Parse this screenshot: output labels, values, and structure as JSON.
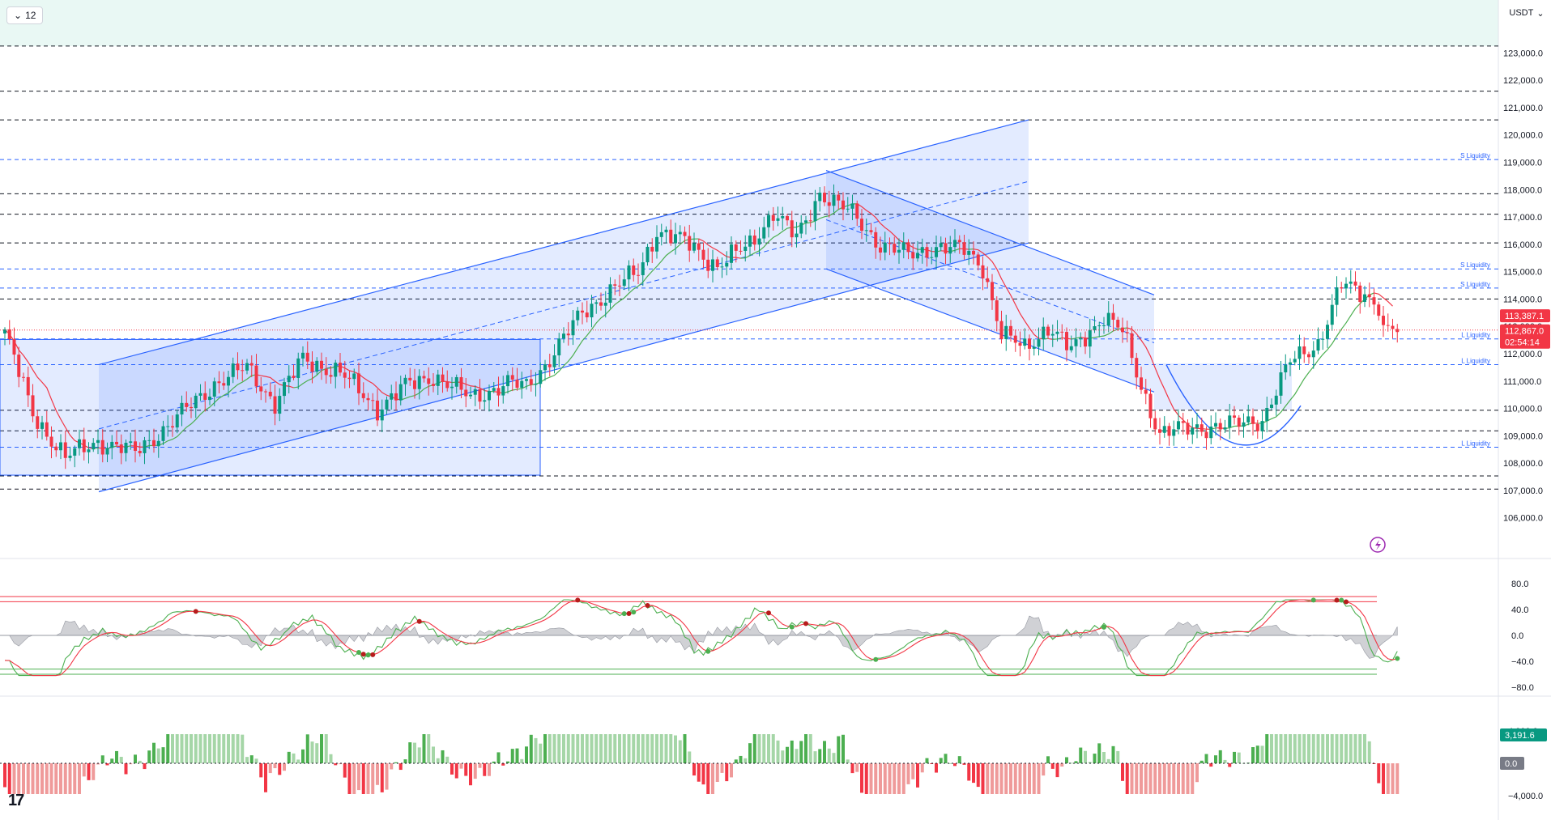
{
  "toolbar": {
    "interval_label": "12",
    "currency_label": "USDT"
  },
  "price_axis": {
    "ticks": [
      "123,000.0",
      "122,000.0",
      "121,000.0",
      "120,000.0",
      "119,000.0",
      "118,000.0",
      "117,000.0",
      "116,000.0",
      "115,000.0",
      "114,000.0",
      "113,000.0",
      "112,000.0",
      "111,000.0",
      "110,000.0",
      "109,000.0",
      "108,000.0",
      "107,000.0",
      "106,000.0"
    ],
    "tick_values": [
      123000,
      122000,
      121000,
      120000,
      119000,
      118000,
      117000,
      116000,
      115000,
      114000,
      113000,
      112000,
      111000,
      110000,
      109000,
      108000,
      107000,
      106000
    ],
    "ylim": [
      105400,
      124400
    ],
    "current_price": "113,387.1",
    "close_price": "112,867.0",
    "countdown": "02:54:14"
  },
  "levels": {
    "black_dashed": [
      123250,
      121600,
      120550,
      117850,
      117100,
      116050,
      114000,
      109930,
      109180,
      107530,
      107050
    ],
    "blue_dashed": [
      119100,
      115100,
      114400,
      112540,
      111600,
      108580
    ],
    "liquidity_labels": [
      {
        "text": "S Liquidity",
        "value": 119100
      },
      {
        "text": "S Liquidity",
        "value": 115100
      },
      {
        "text": "S Liquidity",
        "value": 114400
      },
      {
        "text": "L Liquidity",
        "value": 112540
      },
      {
        "text": "L Liquidity",
        "value": 111600
      },
      {
        "text": "L Liquidity",
        "value": 108580
      }
    ]
  },
  "oscillator": {
    "ticks": [
      "80.0",
      "40.0",
      "0.0",
      "−40.0",
      "−80.0"
    ],
    "tick_values": [
      80,
      40,
      0,
      -40,
      -80
    ],
    "ylim": [
      -100,
      100
    ]
  },
  "histogram": {
    "ticks": [
      "4,000.0",
      "0.0",
      "−4,000.0"
    ],
    "tick_values": [
      4000,
      0,
      -4000
    ],
    "ylim": [
      -4500,
      4500
    ],
    "last_value": "3,191.6",
    "zero_label": "0.0"
  },
  "colors": {
    "up": "#089981",
    "down": "#f23645",
    "channel": "#2962ff",
    "bullish_ma": "#4caf50",
    "bearish_ma": "#f23645"
  },
  "chart_data": {
    "type": "candlestick",
    "symbol_quote": "USDT",
    "interval": "12",
    "anchors": [
      [
        0,
        112800
      ],
      [
        6,
        109800
      ],
      [
        13,
        108200
      ],
      [
        20,
        108800
      ],
      [
        28,
        108400
      ],
      [
        36,
        109500
      ],
      [
        45,
        110900
      ],
      [
        52,
        111500
      ],
      [
        58,
        110200
      ],
      [
        64,
        111800
      ],
      [
        72,
        111300
      ],
      [
        80,
        110000
      ],
      [
        86,
        110800
      ],
      [
        92,
        111200
      ],
      [
        100,
        110400
      ],
      [
        108,
        110900
      ],
      [
        112,
        110800
      ],
      [
        116,
        111600
      ],
      [
        124,
        113500
      ],
      [
        130,
        114300
      ],
      [
        136,
        115000
      ],
      [
        140,
        116500
      ],
      [
        147,
        116000
      ],
      [
        153,
        115200
      ],
      [
        160,
        116000
      ],
      [
        165,
        117200
      ],
      [
        170,
        116200
      ],
      [
        175,
        117900
      ],
      [
        182,
        117100
      ],
      [
        188,
        116000
      ],
      [
        194,
        115600
      ],
      [
        200,
        115900
      ],
      [
        206,
        115800
      ],
      [
        210,
        115200
      ],
      [
        214,
        112700
      ],
      [
        219,
        112200
      ],
      [
        224,
        113000
      ],
      [
        229,
        112100
      ],
      [
        236,
        113400
      ],
      [
        240,
        112800
      ],
      [
        244,
        110800
      ],
      [
        248,
        109100
      ],
      [
        256,
        109300
      ],
      [
        264,
        109400
      ],
      [
        270,
        109600
      ],
      [
        276,
        111700
      ],
      [
        282,
        112400
      ],
      [
        287,
        114500
      ],
      [
        292,
        114200
      ],
      [
        295,
        113800
      ],
      [
        296,
        112867
      ]
    ],
    "ylim": [
      105400,
      124400
    ]
  }
}
